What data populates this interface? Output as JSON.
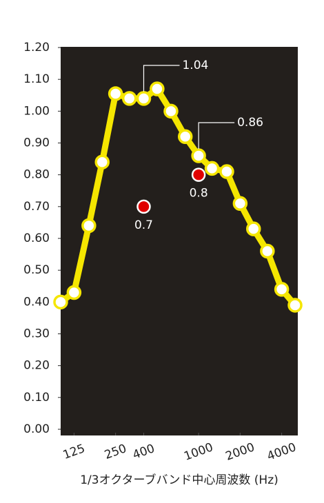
{
  "chart_data": {
    "type": "line",
    "x_label": "1/3オクターブバンド中心周波数 (Hz)",
    "x_log": true,
    "xlim": [
      100,
      5000
    ],
    "xticks": [
      125,
      250,
      400,
      1000,
      2000,
      4000
    ],
    "ylim": [
      0,
      1.2
    ],
    "yticks": [
      {
        "value": 0,
        "label": "0.00"
      },
      {
        "value": 0.1,
        "label": "0.10"
      },
      {
        "value": 0.2,
        "label": "0.20"
      },
      {
        "value": 0.3,
        "label": "0.30"
      },
      {
        "value": 0.4,
        "label": "0.40"
      },
      {
        "value": 0.5,
        "label": "0.50"
      },
      {
        "value": 0.6,
        "label": "0.60"
      },
      {
        "value": 0.7,
        "label": "0.70"
      },
      {
        "value": 0.8,
        "label": "0.80"
      },
      {
        "value": 0.9,
        "label": "0.90"
      },
      {
        "value": 1,
        "label": "1.00"
      },
      {
        "value": 1.1,
        "label": "1.10"
      },
      {
        "value": 1.2,
        "label": "1.20"
      }
    ],
    "background": "#231f1c",
    "series": [
      {
        "color": "#f5e600",
        "x": [
          100,
          125,
          160,
          200,
          250,
          315,
          400,
          500,
          630,
          800,
          1000,
          1250,
          1600,
          2000,
          2500,
          3150,
          4000,
          5000
        ],
        "values": [
          0.4,
          0.43,
          0.64,
          0.84,
          1.055,
          1.04,
          1.04,
          1.07,
          1.0,
          0.92,
          0.86,
          0.82,
          0.81,
          0.71,
          0.63,
          0.56,
          0.44,
          0.39
        ]
      },
      {
        "color": "#e00000",
        "x": [
          400,
          1000
        ],
        "values": [
          0.7,
          0.8
        ],
        "value_labels": [
          "0.7",
          "0.8"
        ]
      }
    ],
    "annotations": [
      {
        "x": 400,
        "y": 1.04,
        "label": "1.04"
      },
      {
        "x": 1000,
        "y": 0.86,
        "label": "0.86"
      }
    ]
  }
}
